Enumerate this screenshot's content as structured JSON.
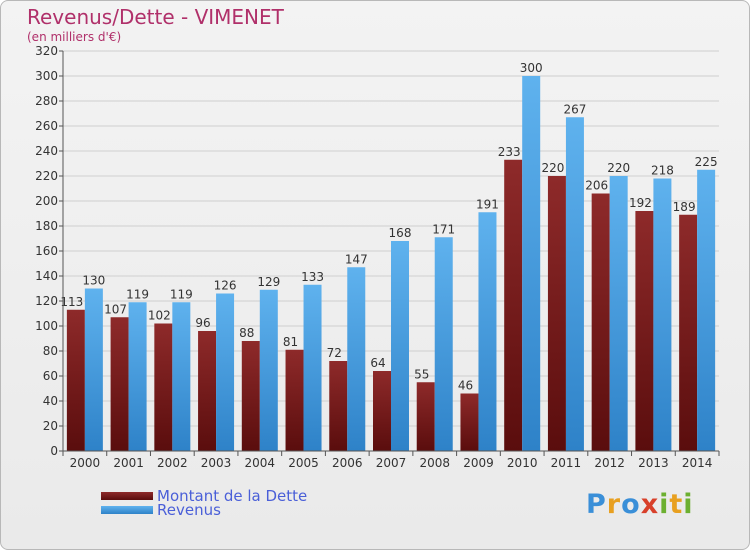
{
  "chart_data": {
    "type": "bar",
    "title": "Revenus/Dette - VIMENET",
    "subtitle": "(en milliers d'€)",
    "xlabel": "",
    "ylabel": "",
    "ylim": [
      0,
      320
    ],
    "yticks": [
      0,
      20,
      40,
      60,
      80,
      100,
      120,
      140,
      160,
      180,
      200,
      220,
      240,
      260,
      280,
      300,
      320
    ],
    "grid": true,
    "legend_position": "bottom-left",
    "categories": [
      "2000",
      "2001",
      "2002",
      "2003",
      "2004",
      "2005",
      "2006",
      "2007",
      "2008",
      "2009",
      "2010",
      "2011",
      "2012",
      "2013",
      "2014"
    ],
    "series": [
      {
        "name": "Montant de la Dette",
        "color": "#7a1e1e",
        "values": [
          113,
          107,
          102,
          96,
          88,
          81,
          72,
          64,
          55,
          46,
          233,
          220,
          206,
          192,
          189
        ]
      },
      {
        "name": "Revenus",
        "color": "#3d9be0",
        "values": [
          130,
          119,
          119,
          126,
          129,
          133,
          147,
          168,
          171,
          191,
          300,
          267,
          220,
          218,
          225
        ]
      }
    ]
  },
  "logo": {
    "letters": [
      "P",
      "r",
      "o",
      "x",
      "i",
      "t",
      "i"
    ],
    "colors": [
      "#3a8fd8",
      "#e8a020",
      "#3a8fd8",
      "#d8402a",
      "#6cb030",
      "#e8a020",
      "#6cb030"
    ]
  }
}
